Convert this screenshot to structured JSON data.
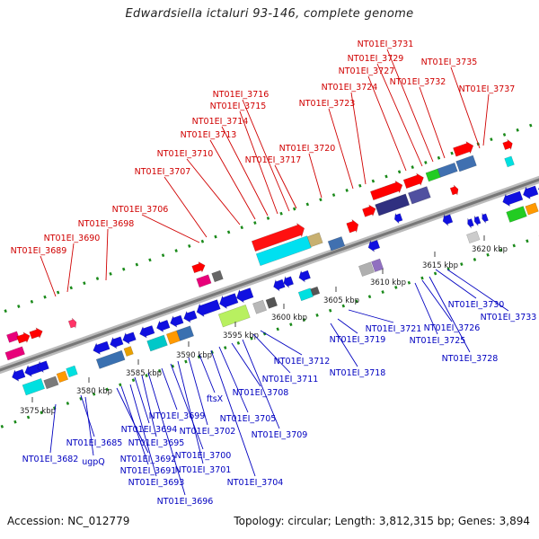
{
  "title": "Edwardsiella ictaluri 93-146, complete genome",
  "footer": {
    "accession": "Accession: NC_012779",
    "stats": "Topology: circular; Length: 3,812,315 bp; Genes: 3,894"
  },
  "colors": {
    "forward_label": "#d00000",
    "reverse_label": "#0000c0",
    "axis": "#888888",
    "tick": "#1a8a1a"
  },
  "scale_labels": [
    "3575 kbp",
    "3580 kbp",
    "3585 kbp",
    "3590 kbp",
    "3595 kbp",
    "3600 kbp",
    "3605 kbp",
    "3610 kbp",
    "3615 kbp",
    "3620 kbp"
  ],
  "upper_labels": [
    "NT01EI_3689",
    "NT01EI_3690",
    "NT01EI_3698",
    "NT01EI_3706",
    "NT01EI_3707",
    "NT01EI_3710",
    "NT01EI_3713",
    "NT01EI_3714",
    "NT01EI_3715",
    "NT01EI_3716",
    "NT01EI_3717",
    "NT01EI_3720",
    "NT01EI_3723",
    "NT01EI_3724",
    "NT01EI_3727",
    "NT01EI_3729",
    "NT01EI_3731",
    "NT01EI_3732",
    "NT01EI_3735",
    "NT01EI_3737"
  ],
  "lower_labels": [
    "NT01EI_3682",
    "NT01EI_3685",
    "ugpQ",
    "NT01EI_3691",
    "NT01EI_3692",
    "NT01EI_3693",
    "NT01EI_3694",
    "NT01EI_3695",
    "NT01EI_3696",
    "NT01EI_3699",
    "NT01EI_3700",
    "NT01EI_3701",
    "NT01EI_3702",
    "ftsX",
    "NT01EI_3704",
    "NT01EI_3705",
    "NT01EI_3708",
    "NT01EI_3709",
    "NT01EI_3711",
    "NT01EI_3712",
    "NT01EI_3718",
    "NT01EI_3719",
    "NT01EI_3721",
    "NT01EI_3725",
    "NT01EI_3726",
    "NT01EI_3728",
    "NT01EI_3730",
    "NT01EI_3733"
  ]
}
